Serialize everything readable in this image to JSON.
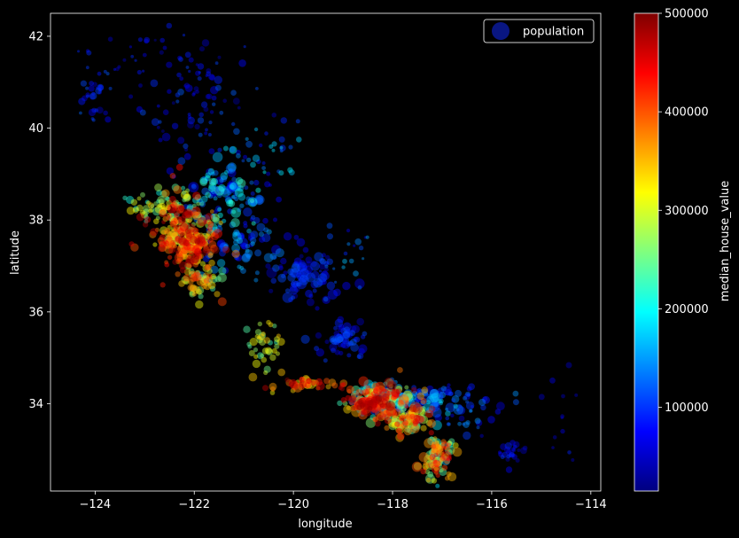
{
  "chart_data": {
    "type": "scatter",
    "xlabel": "longitude",
    "ylabel": "latitude",
    "xlim": [
      -124.9,
      -113.8
    ],
    "ylim": [
      32.1,
      42.5
    ],
    "x_ticks": [
      -124,
      -122,
      -120,
      -118,
      -116,
      -114
    ],
    "x_tick_labels": [
      "−124",
      "−122",
      "−120",
      "−118",
      "−116",
      "−114"
    ],
    "y_ticks": [
      34,
      36,
      38,
      40,
      42
    ],
    "y_tick_labels": [
      "34",
      "36",
      "38",
      "40",
      "42"
    ],
    "grid": false,
    "legend": {
      "label": "population",
      "placement": "top-right"
    },
    "colorbar": {
      "label": "median_house_value",
      "range": [
        15000,
        500000
      ],
      "ticks": [
        100000,
        200000,
        300000,
        400000,
        500000
      ],
      "tick_labels": [
        "100000",
        "200000",
        "300000",
        "400000",
        "500000"
      ],
      "colormap": "jet"
    },
    "regions": [
      {
        "cx": -122.3,
        "cy": 37.75,
        "sx": 0.35,
        "sy": 0.45,
        "n": 170,
        "v": [
          240000,
          500000
        ],
        "p": [
          0.5,
          2.5
        ]
      },
      {
        "cx": -122.0,
        "cy": 37.4,
        "sx": 0.25,
        "sy": 0.25,
        "n": 100,
        "v": [
          300000,
          500000
        ],
        "p": [
          0.8,
          2.5
        ]
      },
      {
        "cx": -121.9,
        "cy": 36.7,
        "sx": 0.2,
        "sy": 0.25,
        "n": 50,
        "v": [
          220000,
          420000
        ],
        "p": [
          0.8,
          2.5
        ]
      },
      {
        "cx": -122.7,
        "cy": 38.3,
        "sx": 0.35,
        "sy": 0.2,
        "n": 60,
        "v": [
          200000,
          330000
        ],
        "p": [
          0.5,
          2.0
        ]
      },
      {
        "cx": -121.4,
        "cy": 38.6,
        "sx": 0.35,
        "sy": 0.35,
        "n": 110,
        "v": [
          60000,
          230000
        ],
        "p": [
          0.5,
          3.0
        ]
      },
      {
        "cx": -121.0,
        "cy": 37.6,
        "sx": 0.4,
        "sy": 0.35,
        "n": 80,
        "v": [
          60000,
          170000
        ],
        "p": [
          0.5,
          2.5
        ]
      },
      {
        "cx": -119.8,
        "cy": 36.75,
        "sx": 0.35,
        "sy": 0.3,
        "n": 90,
        "v": [
          40000,
          120000
        ],
        "p": [
          0.5,
          3.0
        ]
      },
      {
        "cx": -119.0,
        "cy": 35.4,
        "sx": 0.25,
        "sy": 0.2,
        "n": 60,
        "v": [
          40000,
          120000
        ],
        "p": [
          0.5,
          2.5
        ]
      },
      {
        "cx": -118.2,
        "cy": 34.05,
        "sx": 0.35,
        "sy": 0.18,
        "n": 220,
        "v": [
          100000,
          500000
        ],
        "p": [
          0.5,
          3.0
        ]
      },
      {
        "cx": -118.45,
        "cy": 34.0,
        "sx": 0.15,
        "sy": 0.08,
        "n": 50,
        "v": [
          380000,
          500000
        ],
        "p": [
          0.8,
          2.5
        ]
      },
      {
        "cx": -117.7,
        "cy": 33.65,
        "sx": 0.25,
        "sy": 0.15,
        "n": 80,
        "v": [
          220000,
          480000
        ],
        "p": [
          0.8,
          2.5
        ]
      },
      {
        "cx": -117.3,
        "cy": 34.1,
        "sx": 0.35,
        "sy": 0.15,
        "n": 80,
        "v": [
          60000,
          180000
        ],
        "p": [
          0.5,
          3.0
        ]
      },
      {
        "cx": -117.1,
        "cy": 32.85,
        "sx": 0.15,
        "sy": 0.25,
        "n": 100,
        "v": [
          150000,
          450000
        ],
        "p": [
          0.5,
          3.0
        ]
      },
      {
        "cx": -119.75,
        "cy": 34.42,
        "sx": 0.4,
        "sy": 0.06,
        "n": 40,
        "v": [
          300000,
          500000
        ],
        "p": [
          0.5,
          2.5
        ]
      },
      {
        "cx": -120.6,
        "cy": 35.3,
        "sx": 0.2,
        "sy": 0.25,
        "n": 40,
        "v": [
          220000,
          350000
        ],
        "p": [
          0.5,
          2.0
        ]
      },
      {
        "cx": -122.2,
        "cy": 40.5,
        "sx": 0.6,
        "sy": 0.55,
        "n": 70,
        "v": [
          30000,
          120000
        ],
        "p": [
          0.3,
          2.0
        ]
      },
      {
        "cx": -124.0,
        "cy": 40.8,
        "sx": 0.15,
        "sy": 0.35,
        "n": 30,
        "v": [
          40000,
          130000
        ],
        "p": [
          0.3,
          1.5
        ]
      },
      {
        "cx": -123.0,
        "cy": 41.5,
        "sx": 0.8,
        "sy": 0.35,
        "n": 40,
        "v": [
          30000,
          100000
        ],
        "p": [
          0.2,
          1.2
        ]
      },
      {
        "cx": -115.6,
        "cy": 32.9,
        "sx": 0.15,
        "sy": 0.15,
        "n": 25,
        "v": [
          40000,
          100000
        ],
        "p": [
          0.3,
          1.5
        ]
      },
      {
        "cx": -116.5,
        "cy": 33.8,
        "sx": 0.4,
        "sy": 0.3,
        "n": 40,
        "v": [
          50000,
          150000
        ],
        "p": [
          0.3,
          2.0
        ]
      },
      {
        "cx": -114.6,
        "cy": 33.8,
        "sx": 0.2,
        "sy": 0.6,
        "n": 12,
        "v": [
          40000,
          100000
        ],
        "p": [
          0.2,
          1.0
        ]
      },
      {
        "cx": -120.8,
        "cy": 39.3,
        "sx": 0.5,
        "sy": 0.35,
        "n": 45,
        "v": [
          60000,
          200000
        ],
        "p": [
          0.3,
          1.5
        ]
      },
      {
        "cx": -118.8,
        "cy": 37.3,
        "sx": 0.4,
        "sy": 0.4,
        "n": 20,
        "v": [
          60000,
          200000
        ],
        "p": [
          0.2,
          1.2
        ]
      }
    ]
  }
}
